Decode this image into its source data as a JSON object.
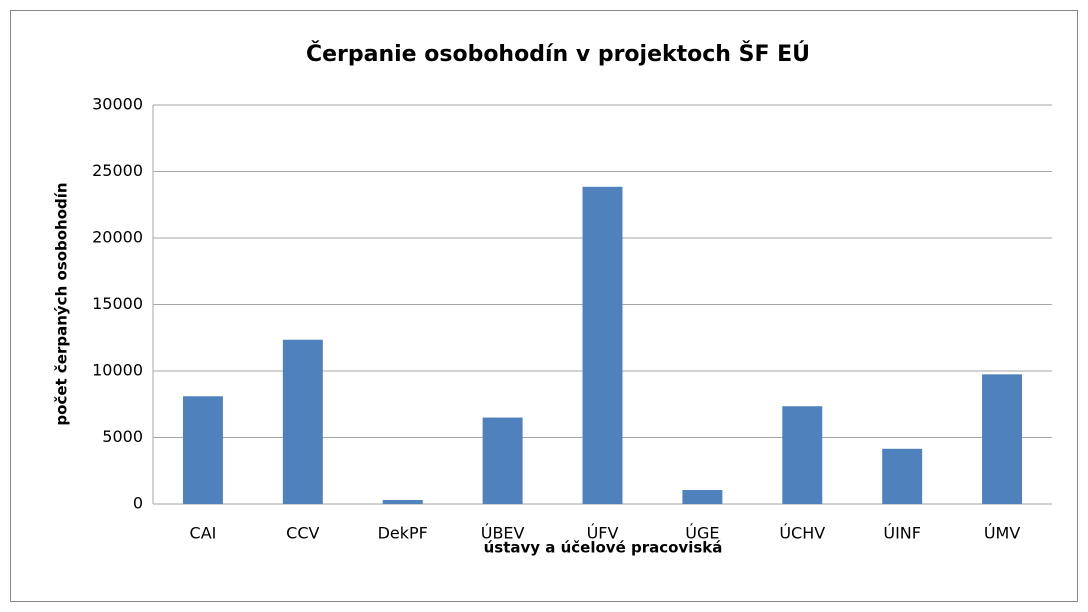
{
  "chart_data": {
    "type": "bar",
    "title": "Čerpanie osobohodín  v projektoch ŠF EÚ",
    "x_label": "ústavy a účelové pracoviská",
    "y_label": "počet čerpaných osobohodín",
    "categories": [
      "CAI",
      "CCV",
      "DekPF",
      "ÚBEV",
      "ÚFV",
      "ÚGE",
      "ÚCHV",
      "ÚINF",
      "ÚMV"
    ],
    "values": [
      8100,
      12350,
      300,
      6500,
      23850,
      1050,
      7350,
      4150,
      9750
    ],
    "color": "#4f81bd",
    "ylim": [
      0,
      30000
    ],
    "yticks": [
      0,
      5000,
      10000,
      15000,
      20000,
      25000,
      30000
    ],
    "grid": true
  }
}
